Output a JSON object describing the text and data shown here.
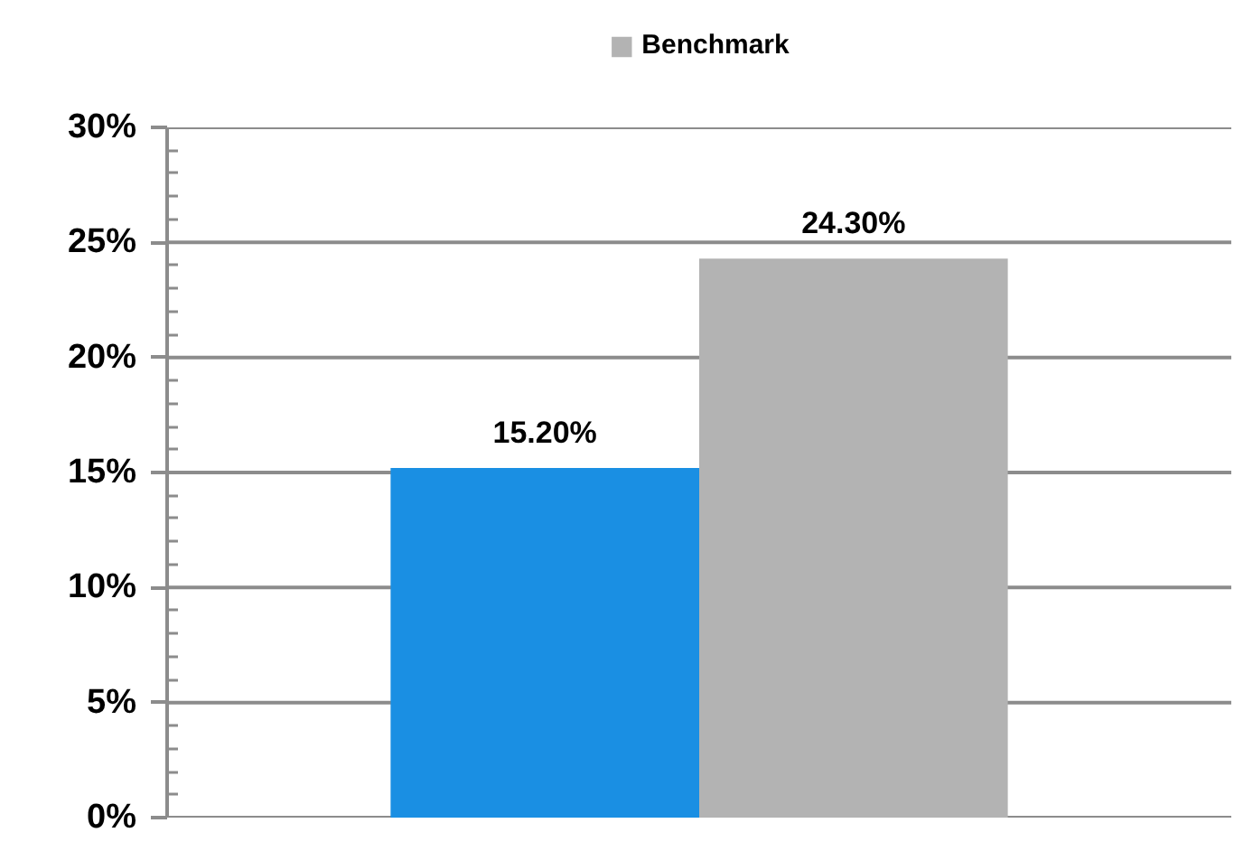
{
  "chart_data": {
    "type": "bar",
    "categories": [
      null
    ],
    "series": [
      {
        "color": "#1a8fe3",
        "values": [
          15.2
        ],
        "value_labels": [
          "15.20%"
        ]
      },
      {
        "name": "Benchmark",
        "color": "#b3b3b3",
        "values": [
          24.3
        ],
        "value_labels": [
          "24.30%"
        ]
      }
    ],
    "ylim": [
      0,
      30
    ],
    "yticks": [
      {
        "value": 0,
        "label": "0%"
      },
      {
        "value": 5,
        "label": "5%"
      },
      {
        "value": 10,
        "label": "10%"
      },
      {
        "value": 15,
        "label": "15%"
      },
      {
        "value": 20,
        "label": "20%"
      },
      {
        "value": 25,
        "label": "25%"
      },
      {
        "value": 30,
        "label": "30%"
      }
    ],
    "grid": "y",
    "legend": "top",
    "tick_labels": "y"
  }
}
